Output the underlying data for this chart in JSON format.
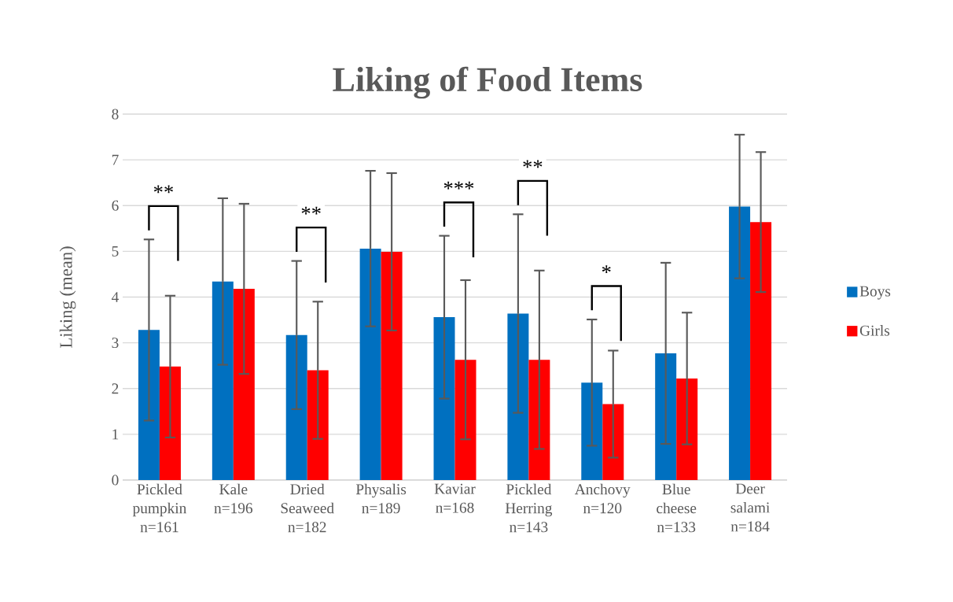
{
  "chart_data": {
    "type": "bar",
    "title": "Liking of Food Items",
    "ylabel": "Liking (mean)",
    "categories": [
      "Pickled pumpkin n=161",
      "Kale n=196",
      "Dried Seaweed n=182",
      "Physalis n=189",
      "Kaviar n=168",
      "Pickled Herring n=143",
      "Anchovy n=120",
      "Blue cheese n=133",
      "Deer salami n=184"
    ],
    "series": [
      {
        "name": "Boys",
        "color": "#0070c0",
        "values": [
          3.28,
          4.34,
          3.17,
          5.06,
          3.56,
          3.64,
          2.13,
          2.77,
          5.98
        ],
        "errors": [
          1.98,
          1.82,
          1.62,
          1.7,
          1.78,
          2.17,
          1.38,
          1.98,
          1.57
        ]
      },
      {
        "name": "Girls",
        "color": "#ff0000",
        "values": [
          2.48,
          4.18,
          2.4,
          4.99,
          2.63,
          2.63,
          1.66,
          2.22,
          5.64
        ],
        "errors": [
          1.55,
          1.86,
          1.5,
          1.72,
          1.74,
          1.95,
          1.17,
          1.44,
          1.53
        ]
      }
    ],
    "ylim": [
      0,
      8
    ],
    "yticks": [
      0,
      1,
      2,
      3,
      4,
      5,
      6,
      7,
      8
    ],
    "grid": "y",
    "legend": "right",
    "annotations": [
      "**",
      "**",
      "***",
      "**",
      "*"
    ]
  }
}
